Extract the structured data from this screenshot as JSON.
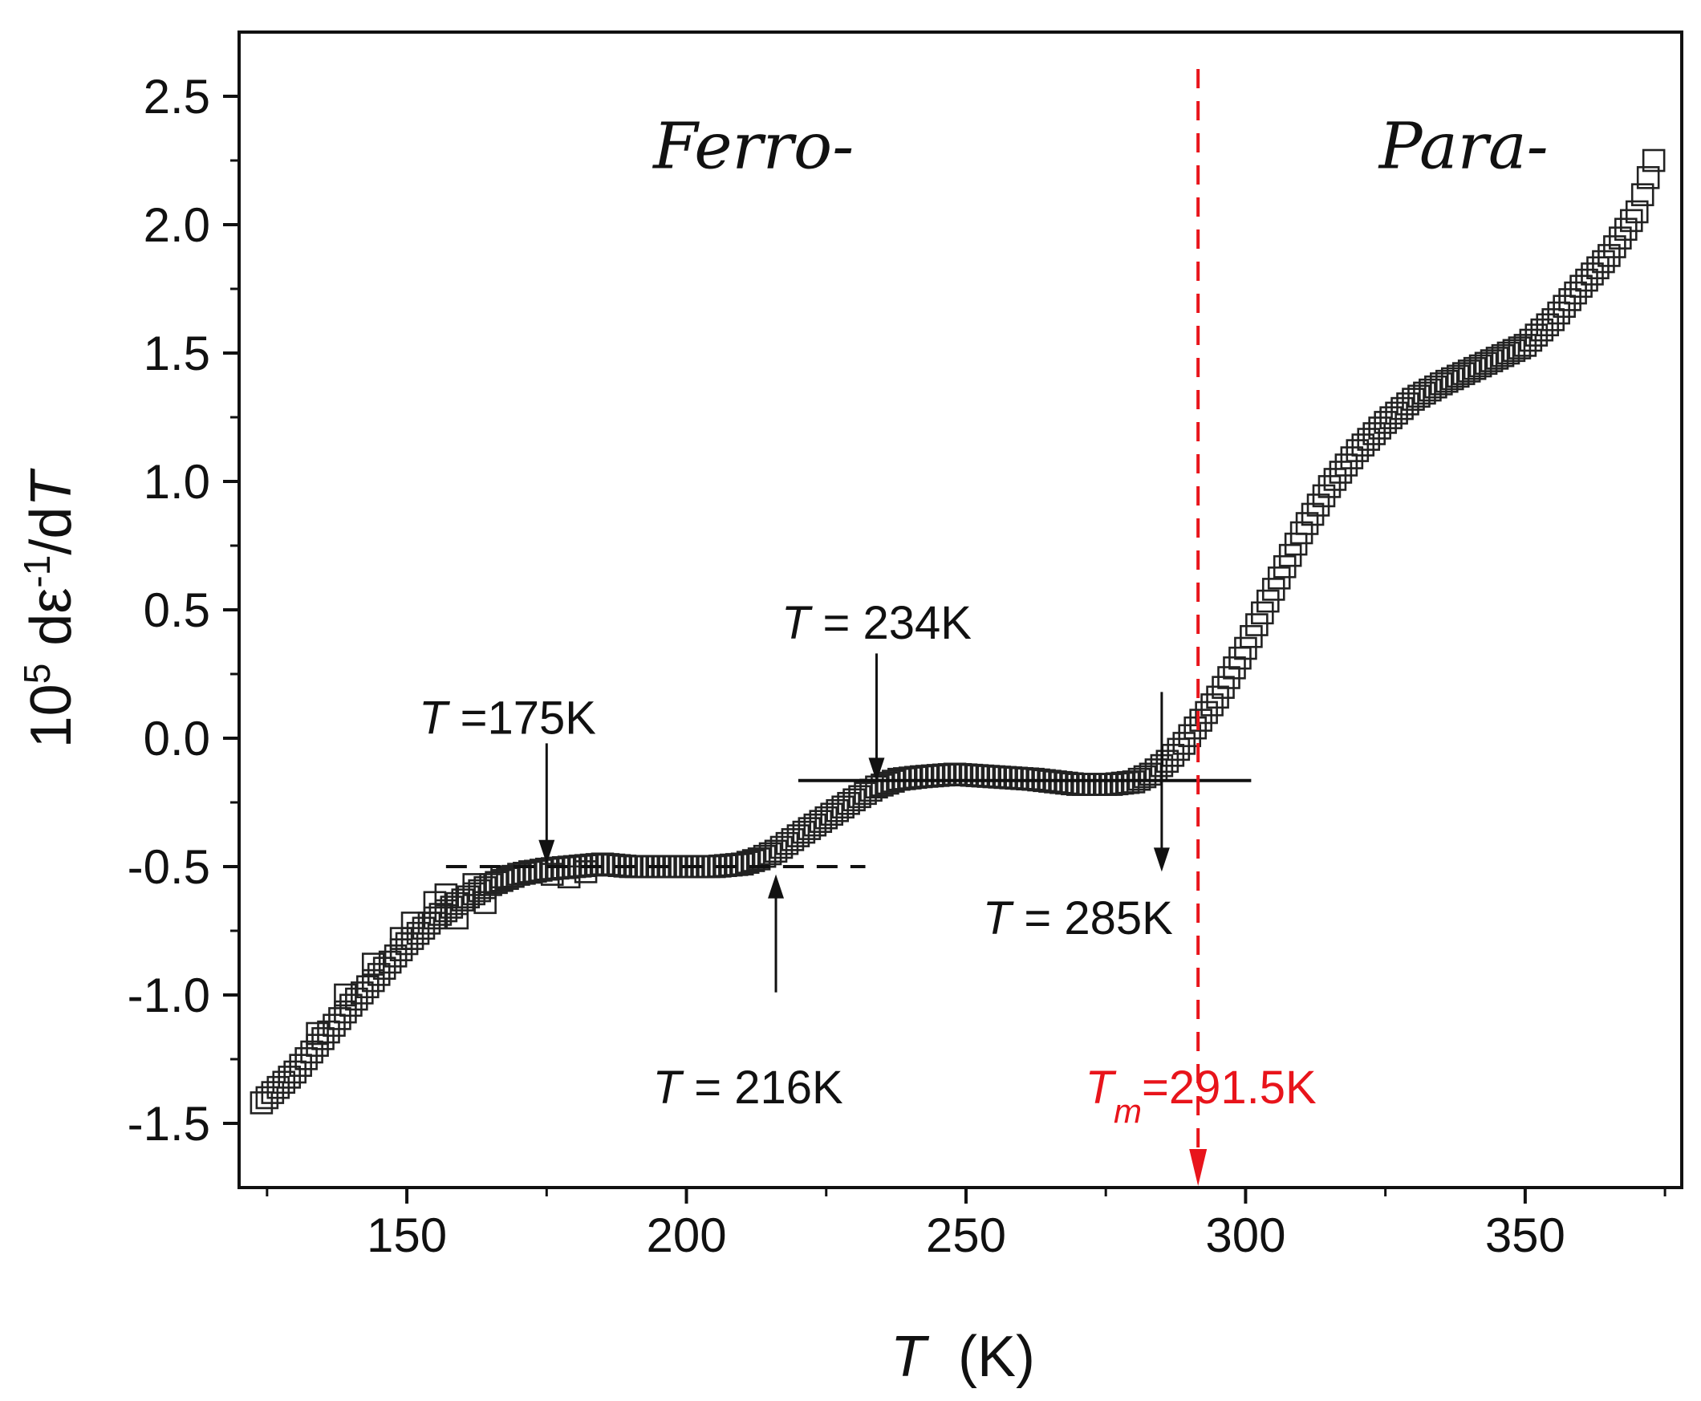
{
  "chart_data": {
    "type": "scatter",
    "xlabel": {
      "symbol": "T",
      "unit": "(K)"
    },
    "ylabel": {
      "prefix": "10",
      "exponent": "5",
      "text": "dε",
      "exponent2": "-1",
      "suffix": "/d",
      "symbol": "T"
    },
    "xlim": [
      120,
      378
    ],
    "ylim": [
      -1.75,
      2.75
    ],
    "xticks": [
      150,
      200,
      250,
      300,
      350
    ],
    "xtick_labels": [
      "150",
      "200",
      "250",
      "300",
      "350"
    ],
    "yticks": [
      -1.5,
      -1.0,
      -0.5,
      0.0,
      0.5,
      1.0,
      1.5,
      2.0,
      2.5
    ],
    "ytick_labels": [
      "-1.5",
      "-1.0",
      "-0.5",
      "0.0",
      "0.5",
      "1.0",
      "1.5",
      "2.0",
      "2.5"
    ],
    "marker": "open-square",
    "curve_keypoints": [
      [
        124,
        -1.42
      ],
      [
        130,
        -1.3
      ],
      [
        135,
        -1.17
      ],
      [
        140,
        -1.04
      ],
      [
        145,
        -0.92
      ],
      [
        150,
        -0.8
      ],
      [
        155,
        -0.7
      ],
      [
        160,
        -0.63
      ],
      [
        165,
        -0.57
      ],
      [
        170,
        -0.53
      ],
      [
        175,
        -0.51
      ],
      [
        180,
        -0.5
      ],
      [
        185,
        -0.49
      ],
      [
        190,
        -0.5
      ],
      [
        195,
        -0.5
      ],
      [
        200,
        -0.5
      ],
      [
        205,
        -0.5
      ],
      [
        210,
        -0.49
      ],
      [
        213,
        -0.47
      ],
      [
        216,
        -0.44
      ],
      [
        220,
        -0.38
      ],
      [
        225,
        -0.31
      ],
      [
        230,
        -0.24
      ],
      [
        234,
        -0.19
      ],
      [
        238,
        -0.16
      ],
      [
        242,
        -0.15
      ],
      [
        248,
        -0.14
      ],
      [
        255,
        -0.15
      ],
      [
        262,
        -0.16
      ],
      [
        270,
        -0.18
      ],
      [
        276,
        -0.18
      ],
      [
        280,
        -0.17
      ],
      [
        283,
        -0.14
      ],
      [
        286,
        -0.09
      ],
      [
        289,
        -0.02
      ],
      [
        292,
        0.07
      ],
      [
        295,
        0.16
      ],
      [
        300,
        0.35
      ],
      [
        305,
        0.58
      ],
      [
        310,
        0.8
      ],
      [
        315,
        0.98
      ],
      [
        320,
        1.12
      ],
      [
        325,
        1.23
      ],
      [
        330,
        1.32
      ],
      [
        335,
        1.38
      ],
      [
        340,
        1.43
      ],
      [
        345,
        1.48
      ],
      [
        350,
        1.53
      ],
      [
        355,
        1.63
      ],
      [
        360,
        1.76
      ],
      [
        365,
        1.88
      ],
      [
        370,
        2.05
      ],
      [
        373,
        2.25
      ]
    ],
    "scatter_extra_points": [
      [
        134,
        -1.15
      ],
      [
        139,
        -1.0
      ],
      [
        144,
        -0.88
      ],
      [
        149,
        -0.78
      ],
      [
        151,
        -0.72
      ],
      [
        155,
        -0.64
      ],
      [
        157,
        -0.61
      ],
      [
        159,
        -0.7
      ],
      [
        162,
        -0.57
      ],
      [
        164,
        -0.64
      ],
      [
        167,
        -0.54
      ],
      [
        172,
        -0.52
      ],
      [
        176,
        -0.53
      ],
      [
        179,
        -0.54
      ],
      [
        182,
        -0.52
      ]
    ],
    "reference_lines": [
      {
        "style": "dashed",
        "color": "#111111",
        "x": [
          157,
          232
        ],
        "y": -0.5
      },
      {
        "style": "solid",
        "color": "#111111",
        "x": [
          220,
          301
        ],
        "y": -0.165
      }
    ],
    "vertical_marker": {
      "x": 291.5,
      "color": "#e8141b",
      "style": "dashed-arrow"
    },
    "region_labels": [
      {
        "text": "Ferro-",
        "x": 212,
        "y": 2.22
      },
      {
        "text": "Para-",
        "x": 339,
        "y": 2.22
      }
    ],
    "annotations": [
      {
        "symbol": "T",
        "rest": " =175K",
        "arrow_from": [
          175,
          -0.02
        ],
        "arrow_to": [
          175,
          -0.49
        ],
        "text_anchor": [
          168,
          0.08
        ]
      },
      {
        "symbol": "T",
        "rest": " = 234K",
        "arrow_from": [
          234,
          0.33
        ],
        "arrow_to": [
          234,
          -0.17
        ],
        "text_anchor": [
          234,
          0.45
        ]
      },
      {
        "symbol": "T",
        "rest": " = 216K",
        "arrow_from": [
          216,
          -0.99
        ],
        "arrow_to": [
          216,
          -0.53
        ],
        "text_anchor": [
          211,
          -1.36
        ]
      },
      {
        "symbol": "T",
        "rest": " = 285K",
        "arrow_from": [
          285,
          0.18
        ],
        "arrow_to": [
          285,
          -0.52
        ],
        "text_anchor": [
          270,
          -0.7
        ]
      }
    ],
    "tm_annotation": {
      "symbol": "T",
      "subscript": "m",
      "rest": "=291.5K",
      "text_anchor": [
        292,
        -1.36
      ]
    }
  }
}
